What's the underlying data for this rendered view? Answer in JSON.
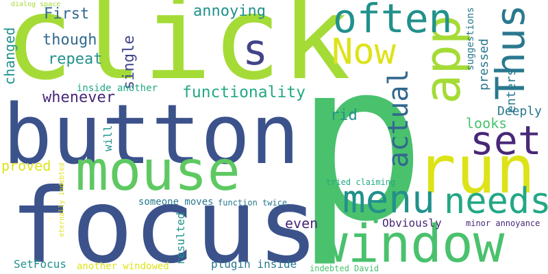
{
  "palette": {
    "yellow_green": "#a5db36",
    "yellow": "#dde318",
    "green": "#4ac16d",
    "mid_green": "#5ec962",
    "teal": "#2a788e",
    "blue_teal": "#31688e",
    "indigo": "#3b528b",
    "dark_blue": "#414487",
    "purple": "#482878",
    "teal_green": "#21918c",
    "sea_green": "#22a884"
  },
  "words": [
    {
      "id": "p",
      "text": "p",
      "color": "green"
    },
    {
      "id": "click",
      "text": "click",
      "color": "yellow_green"
    },
    {
      "id": "button",
      "text": "button",
      "color": "indigo"
    },
    {
      "id": "focus",
      "text": "focus",
      "color": "indigo"
    },
    {
      "id": "mouse",
      "text": "mouse",
      "color": "mid_green"
    },
    {
      "id": "window",
      "text": "window",
      "color": "green"
    },
    {
      "id": "run",
      "text": "run",
      "color": "yellow"
    },
    {
      "id": "app",
      "text": "app",
      "color": "yellow_green"
    },
    {
      "id": "thus",
      "text": "Thus",
      "color": "teal"
    },
    {
      "id": "often",
      "text": "often",
      "color": "teal_green"
    },
    {
      "id": "now",
      "text": "Now",
      "color": "yellow"
    },
    {
      "id": "s",
      "text": "s",
      "color": "dark_blue"
    },
    {
      "id": "set",
      "text": "set",
      "color": "purple"
    },
    {
      "id": "menu",
      "text": "menu",
      "color": "teal_green"
    },
    {
      "id": "needs",
      "text": "needs",
      "color": "sea_green"
    },
    {
      "id": "actual",
      "text": "actual",
      "color": "blue_teal"
    },
    {
      "id": "functionality",
      "text": "functionality",
      "color": "sea_green"
    },
    {
      "id": "whenever",
      "text": "whenever",
      "color": "purple"
    },
    {
      "id": "annoying",
      "text": "annoying",
      "color": "teal_green"
    },
    {
      "id": "first",
      "text": "First",
      "color": "blue_teal"
    },
    {
      "id": "though",
      "text": "though",
      "color": "blue_teal"
    },
    {
      "id": "repeat",
      "text": "repeat",
      "color": "teal_green"
    },
    {
      "id": "single",
      "text": "single",
      "color": "dark_blue"
    },
    {
      "id": "changed",
      "text": "changed",
      "color": "teal_green"
    },
    {
      "id": "proved",
      "text": "proved",
      "color": "yellow"
    },
    {
      "id": "inside-another",
      "text": "inside another",
      "color": "sea_green"
    },
    {
      "id": "will",
      "text": "will",
      "color": "teal_green"
    },
    {
      "id": "suggestions",
      "text": "suggestions",
      "color": "teal"
    },
    {
      "id": "pressed",
      "text": "pressed",
      "color": "teal"
    },
    {
      "id": "enters",
      "text": "enters",
      "color": "teal"
    },
    {
      "id": "deeply",
      "text": "Deeply",
      "color": "teal"
    },
    {
      "id": "rid",
      "text": "rid",
      "color": "teal_green"
    },
    {
      "id": "looks",
      "text": "looks",
      "color": "green"
    },
    {
      "id": "even",
      "text": "even",
      "color": "purple"
    },
    {
      "id": "obviously",
      "text": "Obviously",
      "color": "purple"
    },
    {
      "id": "minor-annoyance",
      "text": "minor annoyance",
      "color": "purple"
    },
    {
      "id": "someone-moves",
      "text": "someone moves",
      "color": "teal"
    },
    {
      "id": "function-twice",
      "text": "function twice",
      "color": "teal"
    },
    {
      "id": "tried-claiming",
      "text": "tried claiming",
      "color": "sea_green"
    },
    {
      "id": "resulted",
      "text": "resulted",
      "color": "teal_green"
    },
    {
      "id": "setfocus",
      "text": "SetFocus",
      "color": "teal_green"
    },
    {
      "id": "another-windowed",
      "text": "another windowed",
      "color": "yellow"
    },
    {
      "id": "plugin-inside",
      "text": "plugin inside",
      "color": "teal"
    },
    {
      "id": "indebted-david",
      "text": "indebted David",
      "color": "green"
    },
    {
      "id": "eternally-indebted",
      "text": "eternally indebted",
      "color": "yellow"
    },
    {
      "id": "dialog-space",
      "text": "dialog space",
      "color": "yellow_green"
    },
    {
      "id": "dot",
      "text": "•",
      "color": "green"
    }
  ]
}
